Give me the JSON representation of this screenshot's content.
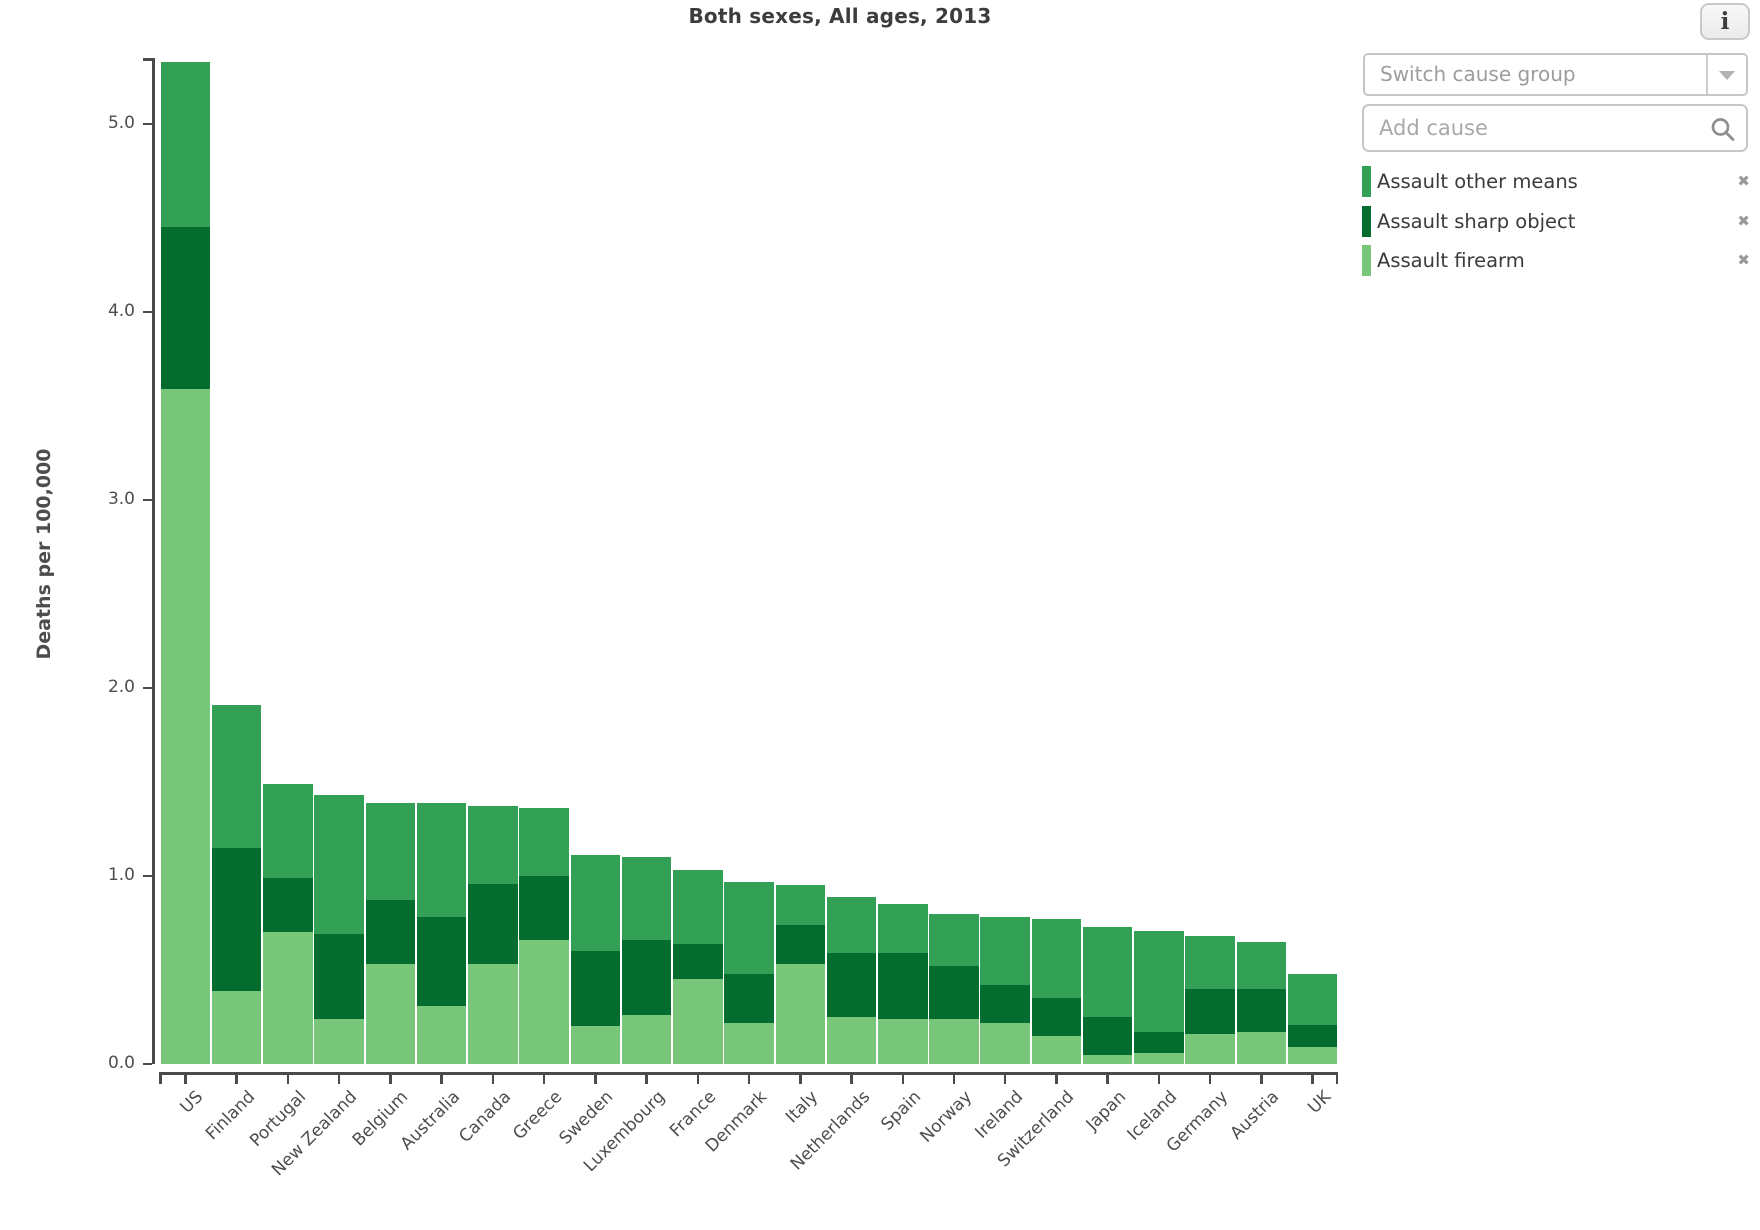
{
  "title": "Both sexes, All ages, 2013",
  "info_button": {
    "label": "i"
  },
  "controls": {
    "switch_cause_group_placeholder": "Switch cause group",
    "add_cause_placeholder": "Add cause"
  },
  "legend": {
    "items": [
      {
        "label": "Assault other means",
        "color": "#33A155",
        "close": "✖"
      },
      {
        "label": "Assault sharp object",
        "color": "#046C2E",
        "close": "✖"
      },
      {
        "label": "Assault firearm",
        "color": "#78C67A",
        "close": "✖"
      }
    ]
  },
  "chart_data": {
    "type": "bar",
    "stacked": true,
    "title": "Both sexes, All ages, 2013",
    "xlabel": "",
    "ylabel": "Deaths per 100,000",
    "ylim": [
      0,
      5.35
    ],
    "ytick_values": [
      0,
      1,
      2,
      3,
      4,
      5
    ],
    "ytick_labels": [
      "0.0",
      "1.0",
      "2.0",
      "3.0",
      "4.0",
      "5.0"
    ],
    "grid": false,
    "legend_position": "top-right",
    "categories": [
      "US",
      "Finland",
      "Portugal",
      "New Zealand",
      "Belgium",
      "Australia",
      "Canada",
      "Greece",
      "Sweden",
      "Luxembourg",
      "France",
      "Denmark",
      "Italy",
      "Netherlands",
      "Spain",
      "Norway",
      "Ireland",
      "Switzerland",
      "Japan",
      "Iceland",
      "Germany",
      "Austria",
      "UK"
    ],
    "series": [
      {
        "name": "Assault firearm",
        "color": "#78C67A",
        "values": [
          3.59,
          0.39,
          0.7,
          0.24,
          0.53,
          0.31,
          0.53,
          0.66,
          0.2,
          0.26,
          0.45,
          0.22,
          0.53,
          0.25,
          0.24,
          0.24,
          0.22,
          0.15,
          0.05,
          0.06,
          0.16,
          0.17,
          0.09
        ]
      },
      {
        "name": "Assault sharp object",
        "color": "#046C2E",
        "values": [
          0.86,
          0.76,
          0.29,
          0.45,
          0.34,
          0.47,
          0.43,
          0.34,
          0.4,
          0.4,
          0.19,
          0.26,
          0.21,
          0.34,
          0.35,
          0.28,
          0.2,
          0.2,
          0.2,
          0.11,
          0.24,
          0.23,
          0.12
        ]
      },
      {
        "name": "Assault other means",
        "color": "#33A155",
        "values": [
          0.88,
          0.76,
          0.5,
          0.74,
          0.52,
          0.61,
          0.41,
          0.36,
          0.51,
          0.44,
          0.39,
          0.49,
          0.21,
          0.3,
          0.26,
          0.28,
          0.36,
          0.42,
          0.48,
          0.54,
          0.28,
          0.25,
          0.27
        ]
      }
    ]
  }
}
